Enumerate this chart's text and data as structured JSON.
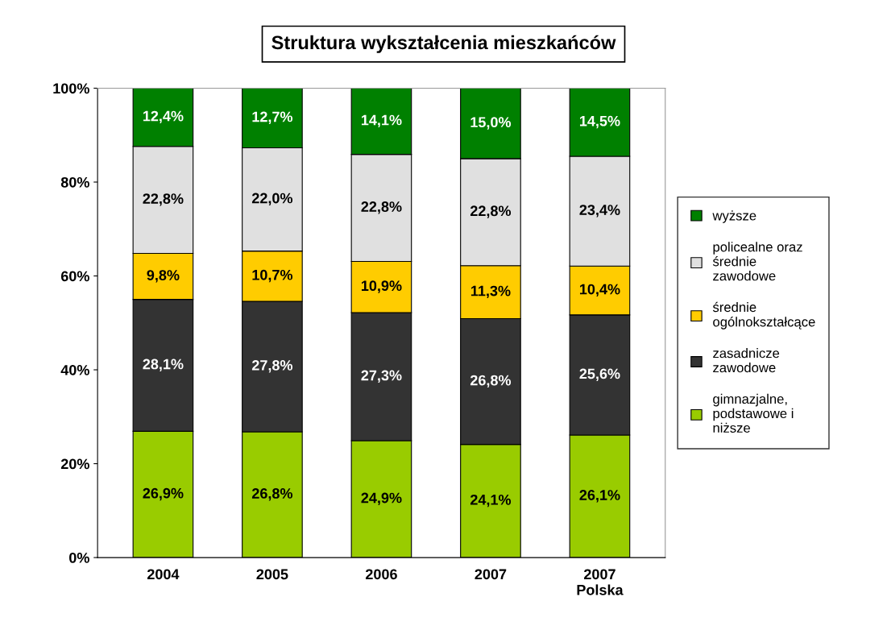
{
  "chart_data": {
    "type": "bar",
    "title": "Struktura wykształcenia mieszkańców",
    "stacked": true,
    "categories": [
      "2004",
      "2005",
      "2006",
      "2007",
      "2007\nPolska"
    ],
    "series": [
      {
        "name": "gimnazjalne,\npodstawowe i\nniższe",
        "color": "#99cc00",
        "values": [
          26.9,
          26.8,
          24.9,
          24.1,
          26.1
        ],
        "value_labels": [
          "26,9%",
          "26,8%",
          "24,9%",
          "24,1%",
          "26,1%"
        ]
      },
      {
        "name": "zasadnicze\nzawodowe",
        "color": "#333333",
        "values": [
          28.1,
          27.8,
          27.3,
          26.8,
          25.6
        ],
        "value_labels": [
          "28,1%",
          "27,8%",
          "27,3%",
          "26,8%",
          "25,6%"
        ]
      },
      {
        "name": "średnie\nogólnokształcące",
        "color": "#ffcc00",
        "values": [
          9.8,
          10.7,
          10.9,
          11.3,
          10.4
        ],
        "value_labels": [
          "9,8%",
          "10,7%",
          "10,9%",
          "11,3%",
          "10,4%"
        ]
      },
      {
        "name": "policealne oraz\nśrednie\nzawodowe",
        "color": "#e0e0e0",
        "values": [
          22.8,
          22.0,
          22.8,
          22.8,
          23.4
        ],
        "value_labels": [
          "22,8%",
          "22,0%",
          "22,8%",
          "22,8%",
          "23,4%"
        ]
      },
      {
        "name": "wyższe",
        "color": "#008000",
        "values": [
          12.4,
          12.7,
          14.1,
          15.0,
          14.5
        ],
        "value_labels": [
          "12,4%",
          "12,7%",
          "14,1%",
          "15,0%",
          "14,5%"
        ]
      }
    ],
    "ylim": [
      0,
      100
    ],
    "yticks": [
      {
        "value": 0,
        "label": "0%"
      },
      {
        "value": 20,
        "label": "20%"
      },
      {
        "value": 40,
        "label": "40%"
      },
      {
        "value": 60,
        "label": "60%"
      },
      {
        "value": 80,
        "label": "80%"
      },
      {
        "value": 100,
        "label": "100%"
      }
    ],
    "grid": false,
    "legend": "right"
  }
}
